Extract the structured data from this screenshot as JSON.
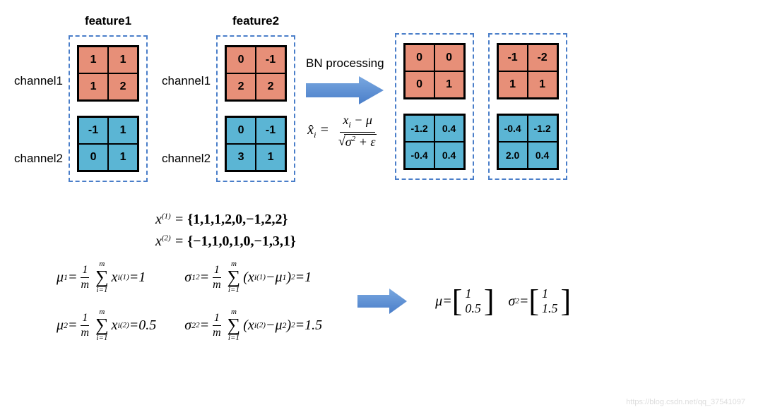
{
  "colors": {
    "orange": "#e78f78",
    "blue": "#5bb5d4",
    "arrow": "#5a8ed4",
    "border_dash": "#4a7ec9"
  },
  "labels": {
    "feature1": "feature1",
    "feature2": "feature2",
    "channel1": "channel1",
    "channel2": "channel2",
    "bn_processing": "BN processing"
  },
  "grids": {
    "f1_c1": [
      "1",
      "1",
      "1",
      "2"
    ],
    "f1_c2": [
      "-1",
      "1",
      "0",
      "1"
    ],
    "f2_c1": [
      "0",
      "-1",
      "2",
      "2"
    ],
    "f2_c2": [
      "0",
      "-1",
      "3",
      "1"
    ],
    "out1_c1": [
      "0",
      "0",
      "0",
      "1"
    ],
    "out1_c2": [
      "-1.2",
      "0.4",
      "-0.4",
      "0.4"
    ],
    "out2_c1": [
      "-1",
      "-2",
      "1",
      "1"
    ],
    "out2_c2": [
      "-0.4",
      "-1.2",
      "2.0",
      "0.4"
    ]
  },
  "equations": {
    "x1_set": "{1,1,1,2,0,−1,2,2}",
    "x2_set": "{−1,1,0,1,0,−1,3,1}",
    "mu1_result": "1",
    "mu2_result": "0.5",
    "sigma1_result": "1",
    "sigma2_result": "1.5",
    "mu_vec_1": "1",
    "mu_vec_2": "0.5",
    "sigma_vec_1": "1",
    "sigma_vec_2": "1.5"
  },
  "watermark": "https://blog.csdn.net/qq_37541097"
}
